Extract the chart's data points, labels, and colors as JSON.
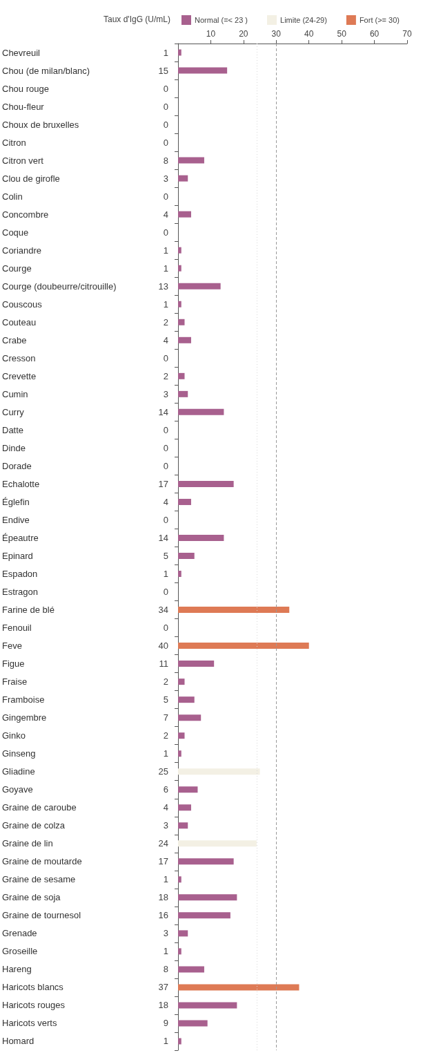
{
  "chart_data": {
    "type": "bar",
    "orientation": "horizontal",
    "stacked": true,
    "legend_title": "Taux d'IgG (U/mL)",
    "legend": "top",
    "grid": false,
    "data_labels": true,
    "categories": [
      "Chevreuil",
      "Chou (de milan/blanc)",
      "Chou rouge",
      "Chou-fleur",
      "Choux de bruxelles",
      "Citron",
      "Citron vert",
      "Clou de girofle",
      "Colin",
      "Concombre",
      "Coque",
      "Coriandre",
      "Courge",
      "Courge (doubeurre/citrouille)",
      "Couscous",
      "Couteau",
      "Crabe",
      "Cresson",
      "Crevette",
      "Cumin",
      "Curry",
      "Datte",
      "Dinde",
      "Dorade",
      "Echalotte",
      "Églefin",
      "Endive",
      "Épeautre",
      "Epinard",
      "Espadon",
      "Estragon",
      "Farine de blé",
      "Fenouil",
      "Feve",
      "Figue",
      "Fraise",
      "Framboise",
      "Gingembre",
      "Ginko",
      "Ginseng",
      "Gliadine",
      "Goyave",
      "Graine de caroube",
      "Graine de colza",
      "Graine de lin",
      "Graine de moutarde",
      "Graine de sesame",
      "Graine de soja",
      "Graine de tournesol",
      "Grenade",
      "Groseille",
      "Hareng",
      "Haricots blancs",
      "Haricots rouges",
      "Haricots verts",
      "Homard"
    ],
    "series": [
      {
        "name": "Normal (=< 23 )",
        "color": "#a8608e",
        "values": [
          1,
          15,
          0,
          0,
          0,
          0,
          8,
          3,
          0,
          4,
          0,
          1,
          1,
          13,
          1,
          2,
          4,
          0,
          2,
          3,
          14,
          0,
          0,
          0,
          17,
          4,
          0,
          14,
          5,
          1,
          0,
          null,
          0,
          null,
          11,
          2,
          5,
          7,
          2,
          1,
          null,
          6,
          4,
          3,
          null,
          17,
          1,
          18,
          16,
          3,
          1,
          8,
          null,
          18,
          9,
          1
        ]
      },
      {
        "name": "Limite (24-29)",
        "color": "#f3f0e4",
        "values": [
          null,
          null,
          null,
          null,
          null,
          null,
          null,
          null,
          null,
          null,
          null,
          null,
          null,
          null,
          null,
          null,
          null,
          null,
          null,
          null,
          null,
          null,
          null,
          null,
          null,
          null,
          null,
          null,
          null,
          null,
          null,
          null,
          null,
          null,
          null,
          null,
          null,
          null,
          null,
          null,
          25,
          null,
          null,
          null,
          24,
          null,
          null,
          null,
          null,
          null,
          null,
          null,
          null,
          null,
          null,
          null
        ]
      },
      {
        "name": "Fort (>= 30)",
        "color": "#de7a55",
        "values": [
          null,
          null,
          null,
          null,
          null,
          null,
          null,
          null,
          null,
          null,
          null,
          null,
          null,
          null,
          null,
          null,
          null,
          null,
          null,
          null,
          null,
          null,
          null,
          null,
          null,
          null,
          null,
          null,
          null,
          null,
          null,
          34,
          null,
          40,
          null,
          null,
          null,
          null,
          null,
          null,
          null,
          null,
          null,
          null,
          null,
          null,
          null,
          null,
          null,
          null,
          null,
          null,
          37,
          null,
          null,
          null
        ]
      }
    ],
    "xlim": [
      0,
      70
    ],
    "xticks": [
      10,
      20,
      30,
      40,
      50,
      60,
      70
    ],
    "ref_lines": [
      {
        "axis": "x",
        "value": 24,
        "color": "#d8d8d8",
        "line_style": "dotted"
      },
      {
        "axis": "x",
        "value": 30,
        "color": "#999999",
        "line_style": "dashed"
      }
    ]
  }
}
